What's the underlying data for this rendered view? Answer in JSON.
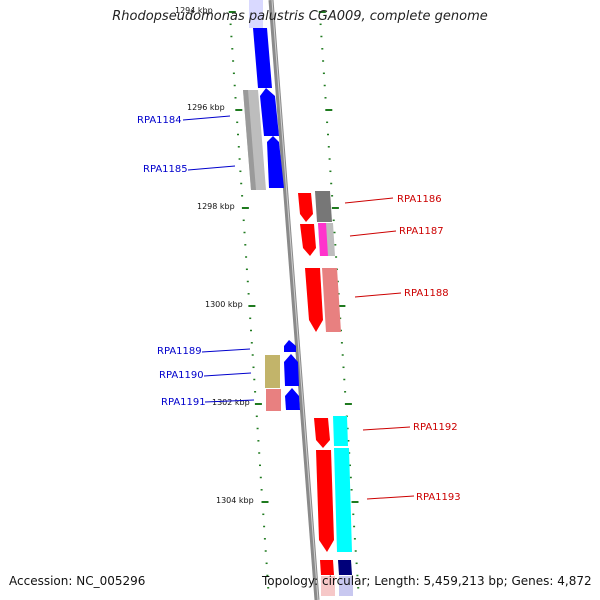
{
  "title": "Rhodopseudomonas palustris CGA009, complete genome",
  "footer": {
    "accession": "Accession: NC_005296",
    "summary": "Topology: circular; Length: 5,459,213 bp; Genes: 4,872"
  },
  "colors": {
    "backbone": "#8a8a8a",
    "tick": "#1f7a1f",
    "reverse_strand_label": "#0000cc",
    "forward_strand_label": "#cc0000",
    "blue": "#0000ff",
    "red": "#ff0000",
    "pink": "#e88080",
    "gray": "#bdbdbd",
    "darkgray": "#777777",
    "magenta": "#ff33cc",
    "olive": "#c2b46a",
    "cyan": "#00ffff",
    "navy": "#00007a"
  },
  "kbp_labels": [
    "1294 kbp",
    "1296 kbp",
    "1298 kbp",
    "1300 kbp",
    "1302 kbp",
    "1304 kbp"
  ],
  "genes": [
    {
      "id": "RPA1184",
      "strand": "reverse"
    },
    {
      "id": "RPA1185",
      "strand": "reverse"
    },
    {
      "id": "RPA1186",
      "strand": "forward"
    },
    {
      "id": "RPA1187",
      "strand": "forward"
    },
    {
      "id": "RPA1188",
      "strand": "forward"
    },
    {
      "id": "RPA1189",
      "strand": "reverse"
    },
    {
      "id": "RPA1190",
      "strand": "reverse"
    },
    {
      "id": "RPA1191",
      "strand": "reverse"
    },
    {
      "id": "RPA1192",
      "strand": "forward"
    },
    {
      "id": "RPA1193",
      "strand": "forward"
    }
  ]
}
